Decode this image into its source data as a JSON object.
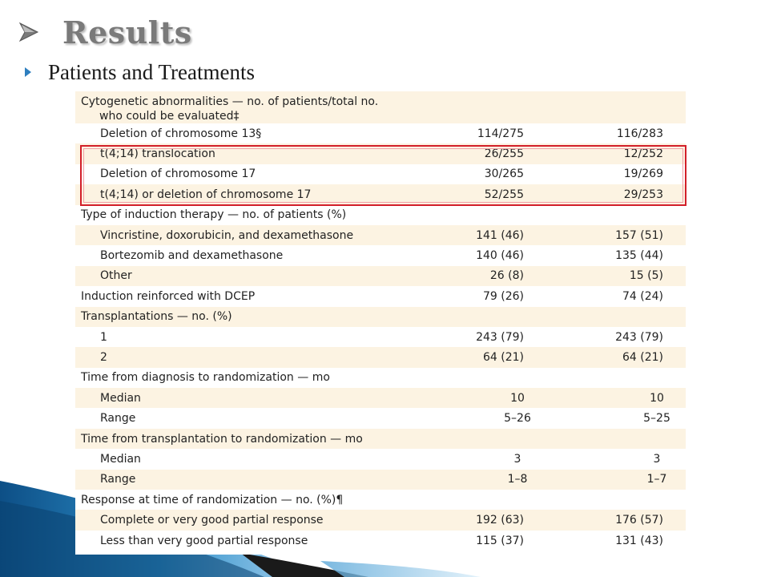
{
  "slide": {
    "title": "Results",
    "subtitle": "Patients and Treatments"
  },
  "table": {
    "header": {
      "line1": "Cytogenetic abnormalities — no. of patients/total no.",
      "line2": "who could be evaluated‡"
    },
    "rows": [
      {
        "label": "Deletion of chromosome 13§",
        "a": "114/275",
        "b": "116/283"
      },
      {
        "label": "t(4;14) translocation",
        "a": "26/255",
        "b": "12/252"
      },
      {
        "label": "Deletion of chromosome 17",
        "a": "30/265",
        "b": "19/269"
      },
      {
        "label": "t(4;14) or deletion of chromosome 17",
        "a": "52/255",
        "b": "29/253"
      },
      {
        "label": "Type of induction therapy — no. of patients (%)",
        "a": "",
        "b": ""
      },
      {
        "label": "Vincristine, doxorubicin, and dexamethasone",
        "a": "141 (46)",
        "b": "157 (51)"
      },
      {
        "label": "Bortezomib and dexamethasone",
        "a": "140 (46)",
        "b": "135 (44)"
      },
      {
        "label": "Other",
        "a": "26 (8)",
        "b": "15 (5)"
      },
      {
        "label": "Induction reinforced with DCEP",
        "a": "79 (26)",
        "b": "74 (24)"
      },
      {
        "label": "Transplantations — no. (%)",
        "a": "",
        "b": ""
      },
      {
        "label": "1",
        "a": "243 (79)",
        "b": "243 (79)"
      },
      {
        "label": "2",
        "a": "64 (21)",
        "b": "64 (21)"
      },
      {
        "label": "Time from diagnosis to randomization — mo",
        "a": "",
        "b": ""
      },
      {
        "label": "Median",
        "a": "10",
        "b": "10"
      },
      {
        "label": "Range",
        "a": "5–26",
        "b": "5–25"
      },
      {
        "label": "Time from transplantation to randomization — mo",
        "a": "",
        "b": ""
      },
      {
        "label": "Median",
        "a": "3",
        "b": "3"
      },
      {
        "label": "Range",
        "a": "1–8",
        "b": "1–7"
      },
      {
        "label": "Response at time of randomization — no. (%)¶",
        "a": "",
        "b": ""
      },
      {
        "label": "Complete or very good partial response",
        "a": "192 (63)",
        "b": "176 (57)"
      },
      {
        "label": "Less than very good partial response",
        "a": "115 (37)",
        "b": "131 (43)"
      }
    ]
  },
  "colors": {
    "title": "#7a7a7a",
    "row_shade": "#fcf3e2",
    "highlight_border": "#d21f2a",
    "swoosh_blue": "#1b6fa8"
  }
}
